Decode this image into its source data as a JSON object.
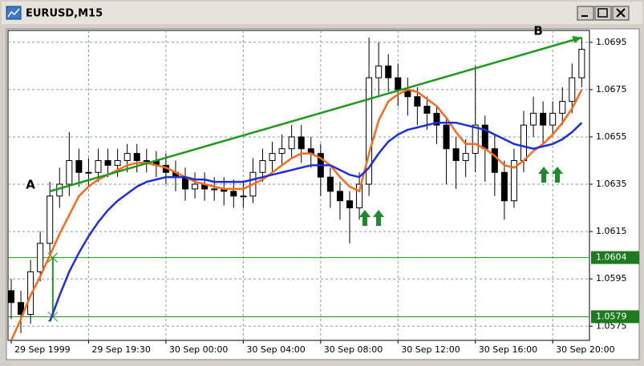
{
  "window": {
    "title": "EURUSD,M15"
  },
  "chart_data": {
    "type": "candlestick",
    "ylim": [
      1.0569,
      1.07
    ],
    "yticks": [
      1.0575,
      1.0595,
      1.0615,
      1.0635,
      1.0655,
      1.0675,
      1.0695
    ],
    "xlim": [
      -0.33,
      59.8
    ],
    "xticks": [
      {
        "value": 0,
        "label": "29 Sep 1999"
      },
      {
        "value": 8,
        "label": "29 Sep 19:30"
      },
      {
        "value": 16,
        "label": "30 Sep 00:00"
      },
      {
        "value": 24,
        "label": "30 Sep 04:00"
      },
      {
        "value": 32,
        "label": "30 Sep 08:00"
      },
      {
        "value": 40,
        "label": "30 Sep 12:00"
      },
      {
        "value": 48,
        "label": "30 Sep 16:00"
      },
      {
        "value": 56,
        "label": "30 Sep 20:00"
      }
    ],
    "grid": true,
    "open": [
      1.059,
      1.0585,
      1.058,
      1.0598,
      1.061,
      1.063,
      1.0635,
      1.0645,
      1.064,
      1.064,
      1.0645,
      1.0643,
      1.0645,
      1.0648,
      1.0645,
      1.0645,
      1.0643,
      1.064,
      1.0638,
      1.0633,
      1.0635,
      1.0633,
      1.0633,
      1.0632,
      1.063,
      1.063,
      1.064,
      1.0645,
      1.0648,
      1.065,
      1.0655,
      1.065,
      1.0648,
      1.0638,
      1.0632,
      1.0628,
      1.0625,
      1.0635,
      1.068,
      1.0685,
      1.068,
      1.0675,
      1.0672,
      1.0668,
      1.0665,
      1.066,
      1.065,
      1.0645,
      1.0648,
      1.066,
      1.065,
      1.064,
      1.0628,
      1.0645,
      1.066,
      1.0665,
      1.066,
      1.0665,
      1.067,
      1.068
    ],
    "high": [
      1.0595,
      1.059,
      1.0603,
      1.0615,
      1.0636,
      1.0642,
      1.0657,
      1.065,
      1.0646,
      1.065,
      1.065,
      1.065,
      1.0652,
      1.0652,
      1.065,
      1.0649,
      1.0648,
      1.0645,
      1.0642,
      1.064,
      1.064,
      1.0638,
      1.0638,
      1.0637,
      1.0636,
      1.0646,
      1.065,
      1.0653,
      1.0656,
      1.066,
      1.066,
      1.0655,
      1.0652,
      1.0642,
      1.0636,
      1.0632,
      1.064,
      1.0697,
      1.0695,
      1.069,
      1.0686,
      1.068,
      1.0676,
      1.0672,
      1.0668,
      1.0663,
      1.0655,
      1.0654,
      1.0685,
      1.0664,
      1.0656,
      1.0645,
      1.065,
      1.0666,
      1.0672,
      1.067,
      1.067,
      1.0676,
      1.0686,
      1.0697
    ],
    "low": [
      1.0578,
      1.0572,
      1.0576,
      1.0594,
      1.0605,
      1.0625,
      1.063,
      1.0634,
      1.0634,
      1.0636,
      1.0638,
      1.0638,
      1.064,
      1.064,
      1.064,
      1.0638,
      1.0635,
      1.0632,
      1.0628,
      1.0629,
      1.0628,
      1.0628,
      1.0626,
      1.0625,
      1.0625,
      1.0627,
      1.0636,
      1.064,
      1.0643,
      1.0646,
      1.0644,
      1.0642,
      1.063,
      1.0625,
      1.062,
      1.061,
      1.062,
      1.063,
      1.0672,
      1.0674,
      1.0668,
      1.0664,
      1.066,
      1.0658,
      1.0652,
      1.0635,
      1.0633,
      1.0638,
      1.064,
      1.0636,
      1.063,
      1.062,
      1.0625,
      1.064,
      1.0655,
      1.0652,
      1.0656,
      1.066,
      1.0665,
      1.0676
    ],
    "close": [
      1.0585,
      1.058,
      1.0598,
      1.061,
      1.063,
      1.0635,
      1.0645,
      1.064,
      1.064,
      1.0645,
      1.0643,
      1.0645,
      1.0648,
      1.0645,
      1.0645,
      1.0643,
      1.064,
      1.0638,
      1.0633,
      1.0635,
      1.0633,
      1.0633,
      1.0632,
      1.063,
      1.063,
      1.064,
      1.0645,
      1.0648,
      1.065,
      1.0655,
      1.065,
      1.0648,
      1.0638,
      1.0632,
      1.0628,
      1.0625,
      1.0635,
      1.068,
      1.0685,
      1.068,
      1.0675,
      1.0672,
      1.0668,
      1.0665,
      1.066,
      1.065,
      1.0645,
      1.0648,
      1.066,
      1.065,
      1.064,
      1.0628,
      1.0645,
      1.066,
      1.0665,
      1.066,
      1.0665,
      1.067,
      1.068,
      1.0692
    ],
    "lines": [
      {
        "color": "#ff6a1a",
        "values": [
          1.0569,
          1.0578,
          1.0588,
          1.0596,
          1.0605,
          1.0614,
          1.0622,
          1.063,
          1.0634,
          1.0637,
          1.0639,
          1.0641,
          1.0643,
          1.0644,
          1.0644,
          1.0643,
          1.0642,
          1.064,
          1.0638,
          1.0636,
          1.0635,
          1.0634,
          1.0633,
          1.0633,
          1.0633,
          1.0635,
          1.0637,
          1.064,
          1.0643,
          1.0646,
          1.0648,
          1.0648,
          1.0646,
          1.0643,
          1.0638,
          1.0634,
          1.0632,
          1.0648,
          1.0662,
          1.067,
          1.0673,
          1.0675,
          1.0674,
          1.0671,
          1.0668,
          1.0663,
          1.0657,
          1.0652,
          1.0652,
          1.065,
          1.0647,
          1.0643,
          1.0642,
          1.0645,
          1.0649,
          1.0652,
          1.0656,
          1.0661,
          1.0667,
          1.0675
        ]
      },
      {
        "color": "#1f2fe0",
        "values": [
          null,
          null,
          null,
          null,
          1.0577,
          1.0588,
          1.0598,
          1.0606,
          1.0613,
          1.0619,
          1.0624,
          1.0628,
          1.0631,
          1.0634,
          1.0636,
          1.0637,
          1.0638,
          1.0638,
          1.0638,
          1.0637,
          1.0637,
          1.0636,
          1.0636,
          1.0636,
          1.0636,
          1.0637,
          1.0638,
          1.0639,
          1.064,
          1.0641,
          1.0642,
          1.0643,
          1.0643,
          1.0643,
          1.0641,
          1.0639,
          1.0638,
          1.0642,
          1.0648,
          1.0653,
          1.0656,
          1.0658,
          1.0659,
          1.066,
          1.0661,
          1.0661,
          1.0661,
          1.066,
          1.0659,
          1.0658,
          1.0656,
          1.0654,
          1.0652,
          1.0651,
          1.065,
          1.0651,
          1.0652,
          1.0654,
          1.0657,
          1.0661
        ]
      }
    ],
    "hlines": [
      1.0604,
      1.0579
    ],
    "trendline": {
      "x": [
        4,
        59
      ],
      "y": [
        1.0632,
        1.0697
      ],
      "labels": [
        "A",
        "B"
      ]
    },
    "line_color": "#1e9a1e"
  }
}
